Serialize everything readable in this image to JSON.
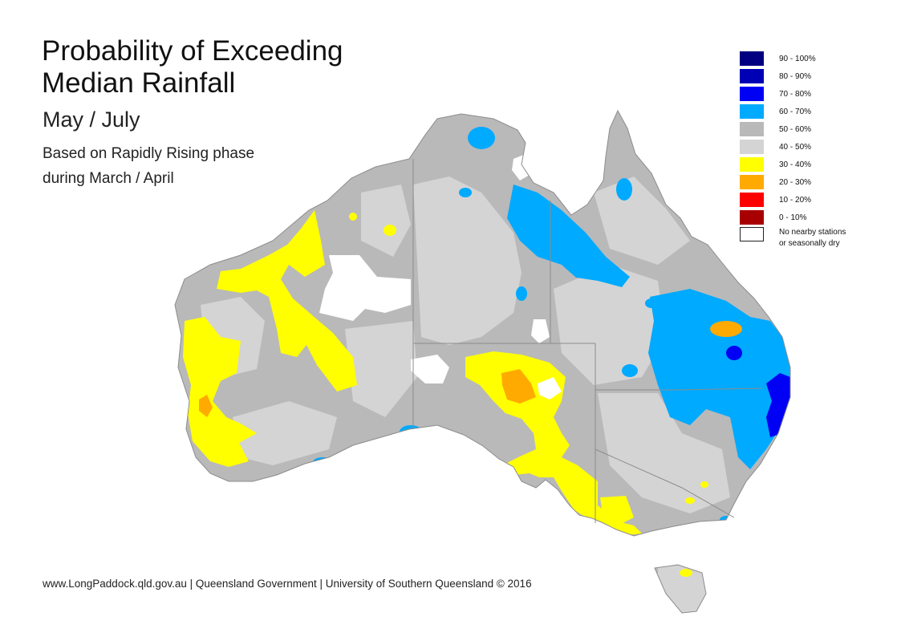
{
  "title_line1": "Probability of Exceeding",
  "title_line2": "Median Rainfall",
  "period": "May / July",
  "subtitle_line1": "Based on Rapidly Rising phase",
  "subtitle_line2": "during March / April",
  "footer": "www.LongPaddock.qld.gov.au | Queensland Government | University of Southern Queensland © 2016",
  "legend": [
    {
      "label": "90 - 100%",
      "color": "#000080"
    },
    {
      "label": "80 - 90%",
      "color": "#0000B4"
    },
    {
      "label": "70 - 80%",
      "color": "#0000F5"
    },
    {
      "label": "60 - 70%",
      "color": "#00AAFF"
    },
    {
      "label": "50 - 60%",
      "color": "#B9B9B9"
    },
    {
      "label": "40 - 50%",
      "color": "#D4D4D4"
    },
    {
      "label": "30 - 40%",
      "color": "#FFFF00"
    },
    {
      "label": "20 - 30%",
      "color": "#FFAA00"
    },
    {
      "label": "10 - 20%",
      "color": "#FF0000"
    },
    {
      "label": "0 - 10%",
      "color": "#A80000"
    }
  ],
  "legend_note_line1": "No nearby stations",
  "legend_note_line2": "or seasonally dry",
  "legend_note_color": "#FFFFFF"
}
